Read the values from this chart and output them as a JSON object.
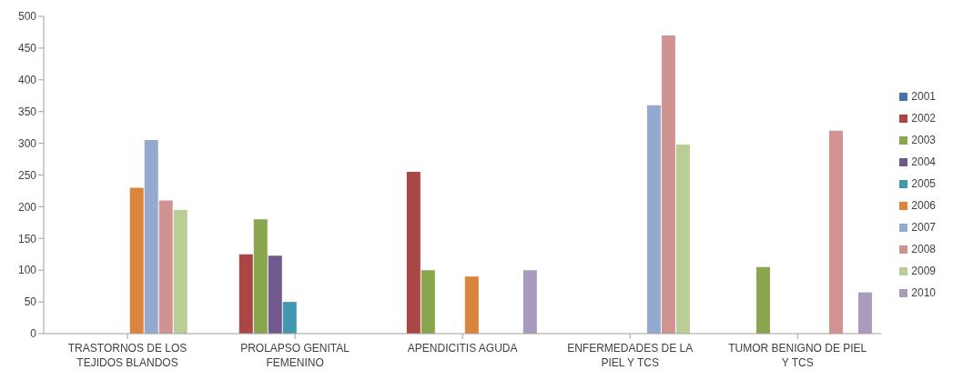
{
  "chart_data": {
    "type": "bar",
    "categories": [
      "TRASTORNOS DE LOS TEJIDOS BLANDOS",
      "PROLAPSO GENITAL FEMENINO",
      "APENDICITIS AGUDA",
      "ENFERMEDADES DE LA PIEL Y TCS",
      "TUMOR BENIGNO DE PIEL Y TCS"
    ],
    "series": [
      {
        "name": "2001",
        "color": "#4572a7",
        "values": [
          null,
          null,
          null,
          null,
          null
        ]
      },
      {
        "name": "2002",
        "color": "#aa4643",
        "values": [
          null,
          125,
          255,
          null,
          null
        ]
      },
      {
        "name": "2003",
        "color": "#89a54e",
        "values": [
          null,
          180,
          100,
          null,
          105
        ]
      },
      {
        "name": "2004",
        "color": "#71588f",
        "values": [
          null,
          123,
          null,
          null,
          null
        ]
      },
      {
        "name": "2005",
        "color": "#4198af",
        "values": [
          null,
          50,
          null,
          null,
          null
        ]
      },
      {
        "name": "2006",
        "color": "#db843d",
        "values": [
          230,
          null,
          90,
          null,
          null
        ]
      },
      {
        "name": "2007",
        "color": "#93a9cf",
        "values": [
          305,
          null,
          null,
          360,
          null
        ]
      },
      {
        "name": "2008",
        "color": "#d19392",
        "values": [
          210,
          null,
          null,
          470,
          320
        ]
      },
      {
        "name": "2009",
        "color": "#b9cd96",
        "values": [
          195,
          null,
          null,
          298,
          null
        ]
      },
      {
        "name": "2010",
        "color": "#a99bbd",
        "values": [
          null,
          null,
          100,
          null,
          65
        ]
      }
    ],
    "ylim": [
      0,
      500
    ],
    "yticks": [
      0,
      50,
      100,
      150,
      200,
      250,
      300,
      350,
      400,
      450,
      500
    ],
    "grid": false,
    "legend": "right"
  }
}
